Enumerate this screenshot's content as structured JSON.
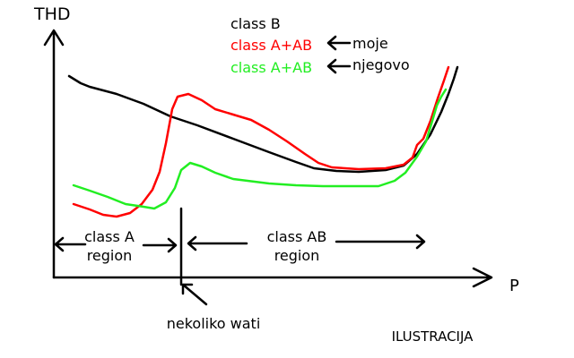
{
  "axes": {
    "y_label": "THD",
    "x_label": "P"
  },
  "legend": [
    {
      "label": "class B",
      "color": "#000000"
    },
    {
      "label": "class A+AB",
      "color": "#ff0000",
      "note": "moje"
    },
    {
      "label": "class A+AB",
      "color": "#22ee22",
      "note": "njegovo"
    }
  ],
  "regions": [
    {
      "lines": [
        "class A",
        "region"
      ]
    },
    {
      "lines": [
        "class AB",
        "region"
      ]
    }
  ],
  "boundary_label": "nekoliko wati",
  "footer": "ILUSTRACIJA"
}
